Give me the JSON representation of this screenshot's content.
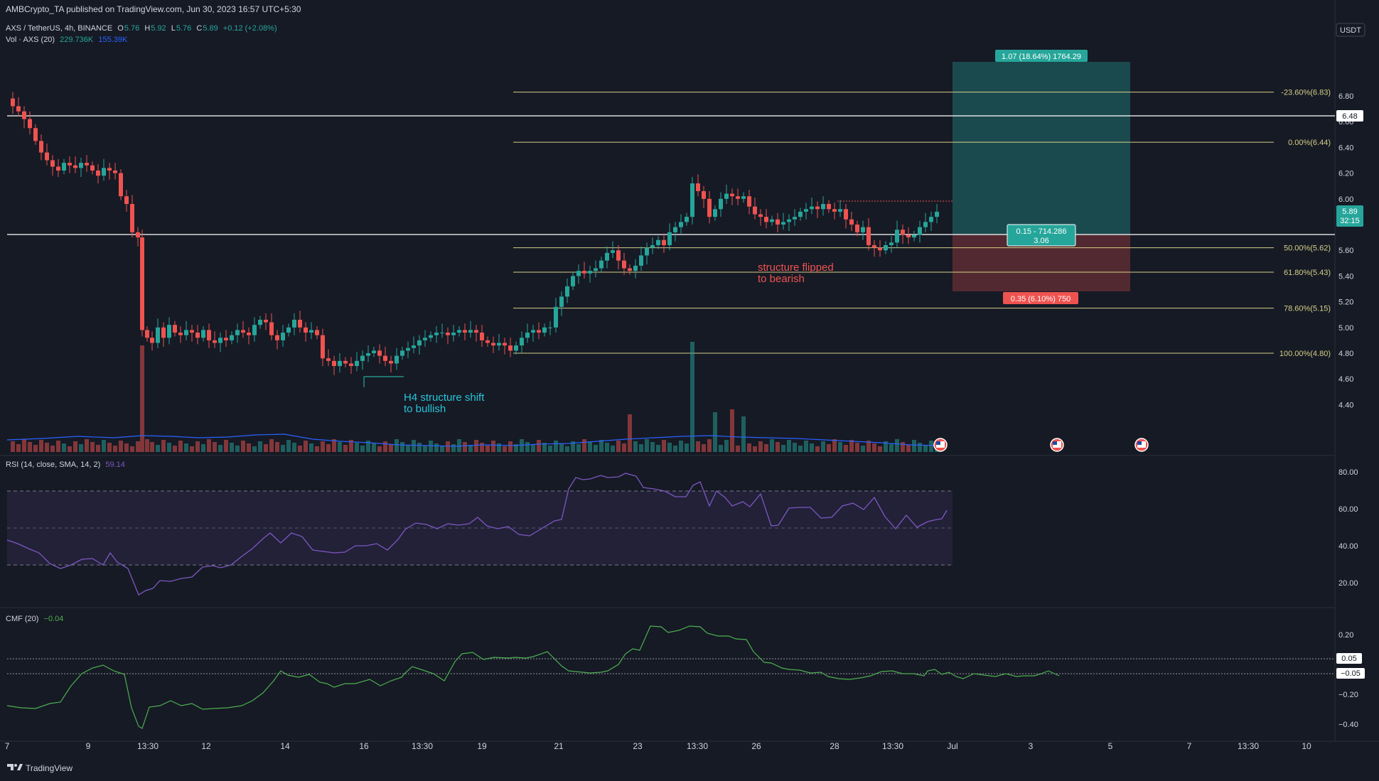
{
  "header": {
    "published": "AMBCrypto_TA published on TradingView.com, Jun 30, 2023 16:57 UTC+5:30",
    "symbol": "AXS / TetherUS, 4h, BINANCE",
    "ohlc": {
      "o_label": "O",
      "o": "5.76",
      "h_label": "H",
      "h": "5.92",
      "l_label": "L",
      "l": "5.76",
      "c_label": "C",
      "c": "5.89",
      "change": "+0.12 (+2.08%)"
    },
    "vol_label": "Vol · AXS (20)",
    "vol_value": "229.736K",
    "vol_ma": "155.39K"
  },
  "currency": "USDT",
  "price_axis": [
    "6.80",
    "6.60",
    "6.40",
    "6.20",
    "6.00",
    "5.60",
    "5.40",
    "5.20",
    "5.00",
    "4.80",
    "4.60",
    "4.40"
  ],
  "price_tags": {
    "resistance": "6.48",
    "current": "5.89",
    "countdown": "32:15"
  },
  "fib_levels": [
    {
      "label": "-23.60%(6.83)",
      "price": 6.83
    },
    {
      "label": "0.00%(6.44)",
      "price": 6.44
    },
    {
      "label": "50.00%(5.62)",
      "price": 5.62
    },
    {
      "label": "61.80%(5.43)",
      "price": 5.43
    },
    {
      "label": "78.60%(5.15)",
      "price": 5.15
    },
    {
      "label": "100.00%(4.80)",
      "price": 4.8
    }
  ],
  "position_tool": {
    "target_label": "1.07 (18.64%) 1764.29",
    "entry_label_1": "0.15 - 714.286",
    "entry_label_2": "3.06",
    "stop_label": "0.35 (6.10%) 750"
  },
  "annotations": {
    "bearish_1": "structure flipped",
    "bearish_2": "to bearish",
    "bullish_1": "H4 structure shift",
    "bullish_2": "to bullish"
  },
  "rsi": {
    "title": "RSI (14, close, SMA, 14, 2)",
    "value": "59.14",
    "axis": [
      "80.00",
      "60.00",
      "40.00",
      "20.00"
    ]
  },
  "cmf": {
    "title": "CMF (20)",
    "value": "−0.04",
    "axis": [
      "0.20",
      "−0.20",
      "−0.40"
    ],
    "tags": [
      "0.05",
      "−0.05"
    ]
  },
  "time_axis": [
    "7",
    "9",
    "13:30",
    "12",
    "14",
    "16",
    "13:30",
    "19",
    "21",
    "23",
    "13:30",
    "26",
    "28",
    "13:30",
    "Jul",
    "3",
    "5",
    "7",
    "13:30",
    "10"
  ],
  "footer": {
    "brand": "TradingView"
  },
  "colors": {
    "bull": "#26a69a",
    "bear": "#ef5350",
    "fib": "#d4cf86",
    "rsi": "#7e57c2",
    "cmf": "#4caf50",
    "vol_ma": "#2962ff"
  }
}
